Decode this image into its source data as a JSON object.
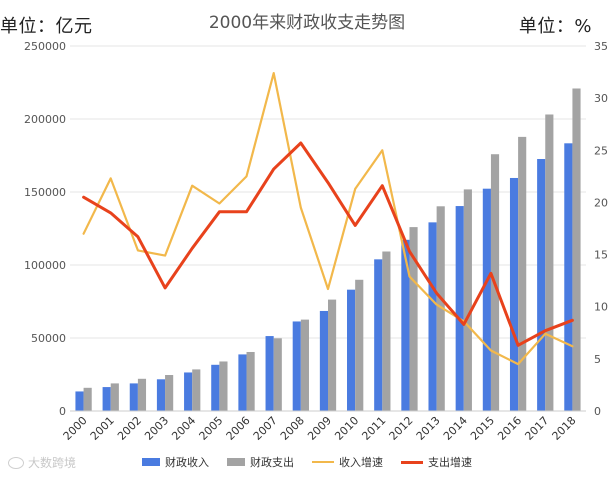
{
  "header": {
    "unit_left": "单位：亿元",
    "title": "2000年来财政收支走势图",
    "unit_right": "单位：%"
  },
  "watermark": "大数跨境",
  "colors": {
    "revenue_bar": "#4a7be0",
    "expenditure_bar": "#a3a3a3",
    "revenue_growth": "#f2b84b",
    "expenditure_growth": "#e8421c",
    "grid": "#e6e6e6",
    "axis_text": "#555555"
  },
  "chart_data": {
    "type": "bar",
    "categories": [
      "2000",
      "2001",
      "2002",
      "2003",
      "2004",
      "2005",
      "2006",
      "2007",
      "2008",
      "2009",
      "2010",
      "2011",
      "2012",
      "2013",
      "2014",
      "2015",
      "2016",
      "2017",
      "2018"
    ],
    "left_axis": {
      "ylim": [
        0,
        250000
      ],
      "ticks": [
        0,
        50000,
        100000,
        150000,
        200000,
        250000
      ]
    },
    "right_axis": {
      "ylim": [
        0,
        35
      ],
      "ticks": [
        0,
        5,
        10,
        15,
        20,
        25,
        30,
        35
      ]
    },
    "grid": true,
    "legend_position": "bottom",
    "series": [
      {
        "name": "财政收入",
        "kind": "bar",
        "axis": "left",
        "values": [
          13395,
          16386,
          18904,
          21715,
          26396,
          31649,
          38760,
          51322,
          61330,
          68518,
          83102,
          103874,
          117254,
          129210,
          140370,
          152269,
          159605,
          172593,
          183352
        ]
      },
      {
        "name": "财政支出",
        "kind": "bar",
        "axis": "left",
        "values": [
          15887,
          18903,
          22053,
          24650,
          28487,
          33930,
          40423,
          49781,
          62593,
          76300,
          89874,
          109248,
          125953,
          140212,
          151786,
          175878,
          187755,
          203085,
          220904
        ]
      },
      {
        "name": "收入增速",
        "kind": "line",
        "axis": "right",
        "values": [
          17.0,
          22.3,
          15.4,
          14.9,
          21.6,
          19.9,
          22.5,
          32.4,
          19.5,
          11.7,
          21.3,
          25.0,
          12.9,
          10.2,
          8.6,
          5.8,
          4.5,
          7.4,
          6.2
        ]
      },
      {
        "name": "支出增速",
        "kind": "line",
        "axis": "right",
        "values": [
          20.5,
          19.0,
          16.7,
          11.8,
          15.6,
          19.1,
          19.1,
          23.2,
          25.7,
          21.9,
          17.8,
          21.6,
          15.3,
          11.3,
          8.3,
          13.2,
          6.3,
          7.7,
          8.7
        ]
      }
    ]
  }
}
